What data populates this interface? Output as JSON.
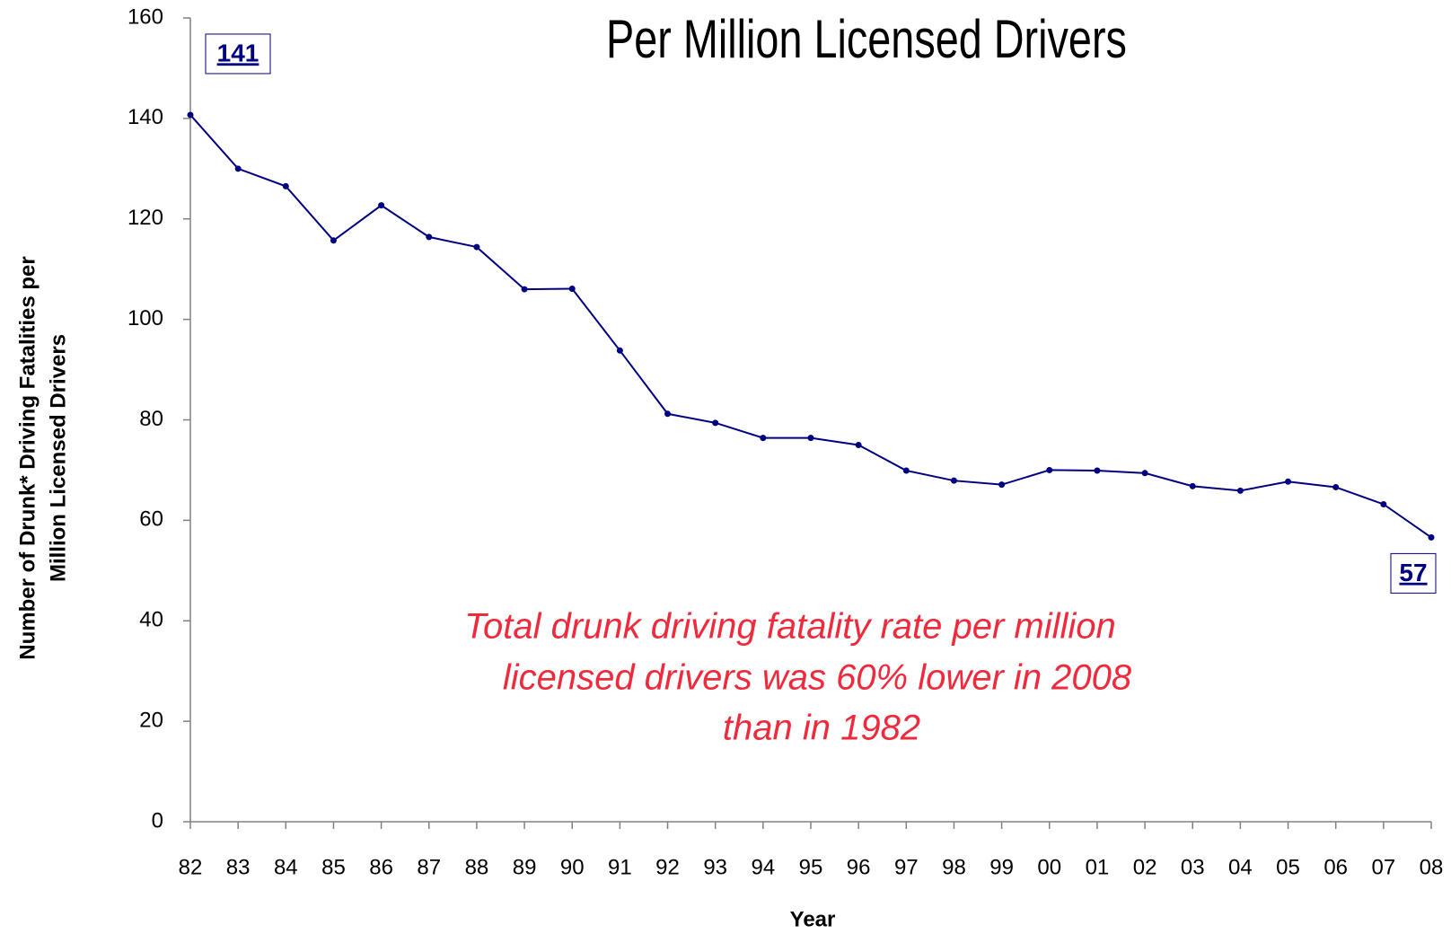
{
  "chart_data": {
    "type": "line",
    "title": "Per Million Licensed Drivers",
    "xlabel": "Year",
    "ylabel": [
      "Number of Drunk* Driving Fatalities per",
      "Million Licensed Drivers"
    ],
    "annotation": [
      "Total drunk driving fatality rate per million",
      "licensed drivers was 60% lower in 2008",
      "than in 1982"
    ],
    "categories": [
      "82",
      "83",
      "84",
      "85",
      "86",
      "87",
      "88",
      "89",
      "90",
      "91",
      "92",
      "93",
      "94",
      "95",
      "96",
      "97",
      "98",
      "99",
      "00",
      "01",
      "02",
      "03",
      "04",
      "05",
      "06",
      "07",
      "08"
    ],
    "values": [
      140.7,
      130,
      126.5,
      115.7,
      122.7,
      116.4,
      114.4,
      106,
      106.1,
      93.8,
      81.2,
      79.4,
      76.4,
      76.4,
      75,
      69.9,
      67.9,
      67.1,
      70,
      69.9,
      69.4,
      66.8,
      65.9,
      67.7,
      66.6,
      63.2,
      56.6
    ],
    "value_labels": [
      "141",
      null,
      null,
      null,
      null,
      null,
      null,
      null,
      null,
      null,
      null,
      null,
      null,
      null,
      null,
      null,
      null,
      null,
      null,
      null,
      null,
      null,
      null,
      null,
      null,
      null,
      "57"
    ],
    "color": "#000080",
    "annotation_color": "#ee2a3c",
    "ylim": [
      0,
      160
    ],
    "yticks": [
      0,
      20,
      40,
      60,
      80,
      100,
      120,
      140,
      160
    ],
    "grid": false
  }
}
